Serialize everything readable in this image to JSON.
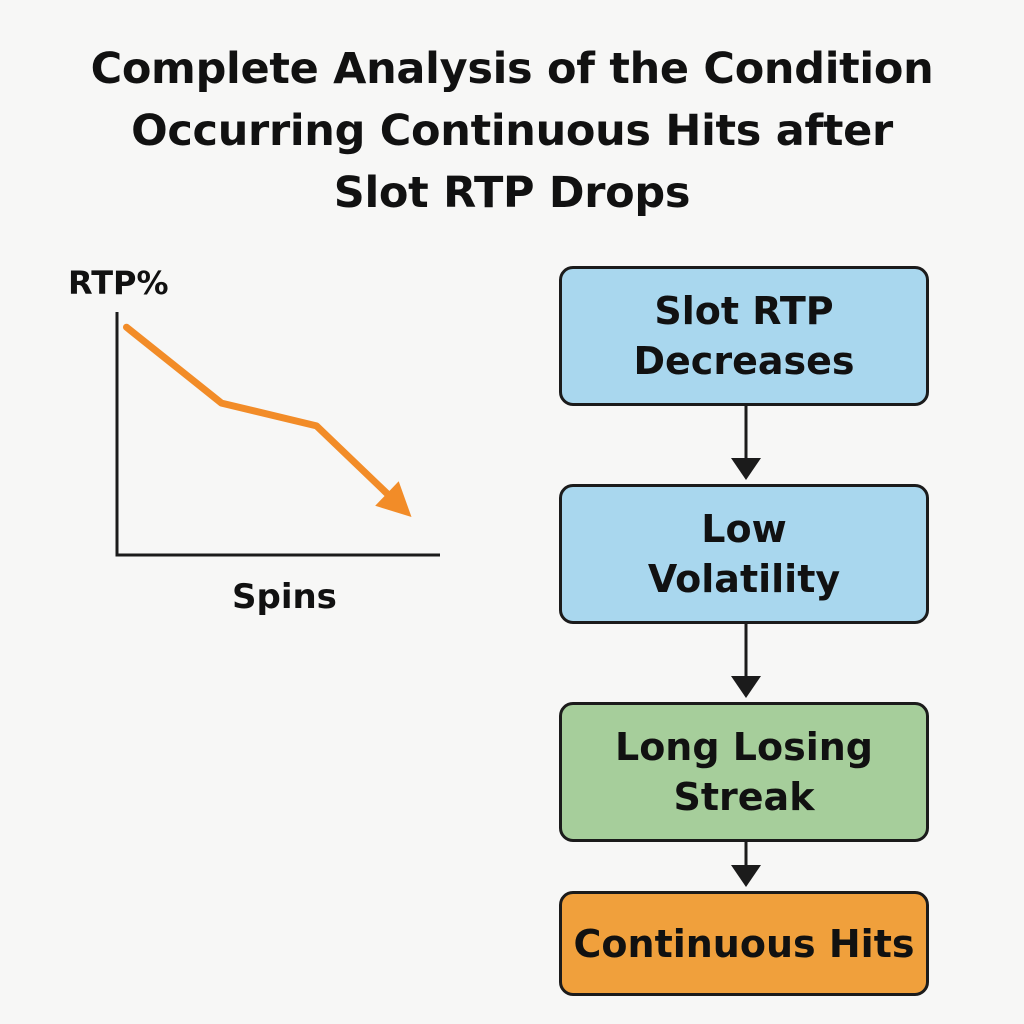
{
  "title": {
    "lines": [
      "Complete Analysis of the Condition",
      "Occurring Continuous Hits after",
      "Slot RTP Drops"
    ]
  },
  "chart_data": {
    "type": "line",
    "xlabel": "Spins",
    "ylabel": "RTP%",
    "x": [
      0,
      1,
      2,
      3
    ],
    "series": [
      {
        "values": [
          100,
          60,
          48,
          0
        ]
      }
    ],
    "xlim": [
      -0.1,
      3.3
    ],
    "ylim": [
      -20,
      108
    ],
    "grid": false,
    "line_color": "#f28c28",
    "end_marker": "arrow",
    "tick_labels": false
  },
  "flow": {
    "steps": [
      {
        "lines": [
          "Slot RTP",
          "Decreases"
        ],
        "color": "#a9d7ee"
      },
      {
        "lines": [
          "Low",
          "Volatility"
        ],
        "color": "#a9d7ee"
      },
      {
        "lines": [
          "Long Losing",
          "Streak"
        ],
        "color": "#a6ce9b"
      },
      {
        "lines": [
          "Continuous Hits"
        ],
        "color": "#f0a03c"
      }
    ]
  }
}
